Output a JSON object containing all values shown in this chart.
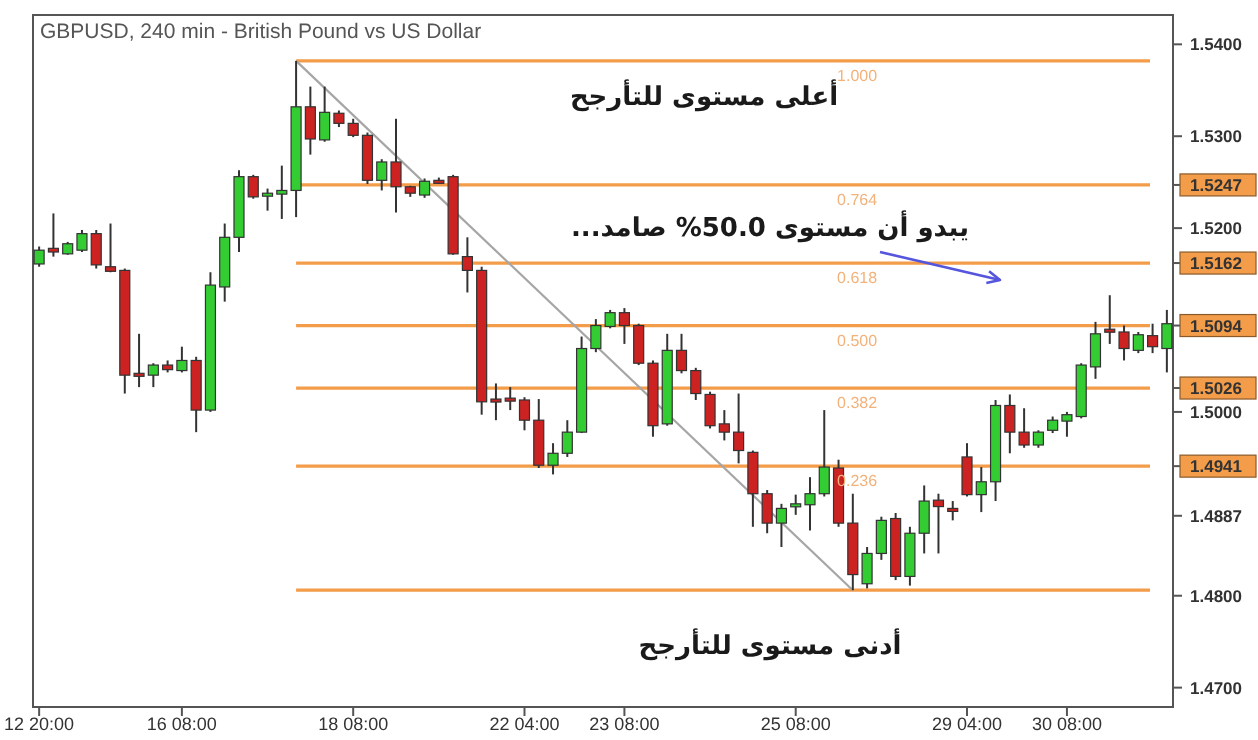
{
  "chart_data": {
    "type": "candlestick",
    "title": "GBPUSD, 240 min - British Pound vs US Dollar",
    "categories": [
      "12 20:00",
      null,
      null,
      null,
      null,
      null,
      null,
      null,
      null,
      null,
      "16 08:00",
      null,
      null,
      null,
      null,
      null,
      null,
      null,
      null,
      null,
      null,
      null,
      "18 08:00",
      null,
      null,
      null,
      null,
      null,
      null,
      null,
      null,
      null,
      null,
      null,
      "22 04:00",
      null,
      null,
      null,
      null,
      null,
      null,
      "23 08:00",
      null,
      null,
      null,
      null,
      null,
      null,
      null,
      null,
      null,
      null,
      null,
      "25 08:00",
      null,
      null,
      null,
      null,
      null,
      null,
      null,
      null,
      null,
      null,
      null,
      "29 04:00",
      null,
      null,
      null,
      null,
      null,
      null,
      "30 08:00",
      null,
      null,
      null,
      null,
      null,
      null,
      null
    ],
    "ohlc": [
      [
        1.5161,
        1.518,
        1.5158,
        1.5176
      ],
      [
        1.5178,
        1.5216,
        1.5169,
        1.5174
      ],
      [
        1.5172,
        1.5185,
        1.5171,
        1.5183
      ],
      [
        1.5176,
        1.5198,
        1.5174,
        1.5194
      ],
      [
        1.5194,
        1.5198,
        1.5156,
        1.516
      ],
      [
        1.5158,
        1.5205,
        1.5152,
        1.5153
      ],
      [
        1.5154,
        1.5156,
        1.502,
        1.504
      ],
      [
        1.5042,
        1.5085,
        1.5027,
        1.5039
      ],
      [
        1.504,
        1.5053,
        1.5027,
        1.5051
      ],
      [
        1.5051,
        1.5056,
        1.5043,
        1.5046
      ],
      [
        1.5045,
        1.5071,
        1.5043,
        1.5056
      ],
      [
        1.5056,
        1.506,
        1.4978,
        1.5002
      ],
      [
        1.5002,
        1.5152,
        1.5,
        1.5138
      ],
      [
        1.5136,
        1.5205,
        1.512,
        1.519
      ],
      [
        1.519,
        1.5263,
        1.5174,
        1.5256
      ],
      [
        1.5256,
        1.5258,
        1.5232,
        1.5234
      ],
      [
        1.5236,
        1.5243,
        1.5219,
        1.5238
      ],
      [
        1.5237,
        1.5268,
        1.521,
        1.5241
      ],
      [
        1.5241,
        1.5382,
        1.5212,
        1.5332
      ],
      [
        1.5332,
        1.5354,
        1.528,
        1.5297
      ],
      [
        1.5296,
        1.5354,
        1.5294,
        1.5326
      ],
      [
        1.5325,
        1.5328,
        1.531,
        1.5314
      ],
      [
        1.5314,
        1.5319,
        1.5299,
        1.5301
      ],
      [
        1.5301,
        1.5304,
        1.5248,
        1.5252
      ],
      [
        1.5252,
        1.5275,
        1.5241,
        1.5272
      ],
      [
        1.5272,
        1.5319,
        1.5217,
        1.5245
      ],
      [
        1.5245,
        1.5246,
        1.5234,
        1.5238
      ],
      [
        1.5236,
        1.5254,
        1.5233,
        1.5251
      ],
      [
        1.5252,
        1.5255,
        1.5248,
        1.5251
      ],
      [
        1.5256,
        1.5258,
        1.5171,
        1.5172
      ],
      [
        1.5169,
        1.519,
        1.513,
        1.5154
      ],
      [
        1.5154,
        1.5158,
        1.4997,
        1.5011
      ],
      [
        1.5014,
        1.5031,
        1.4991,
        1.5013
      ],
      [
        1.5015,
        1.5027,
        1.5002,
        1.5013
      ],
      [
        1.5013,
        1.5016,
        1.498,
        1.4991
      ],
      [
        1.4991,
        1.5014,
        1.4939,
        1.4942
      ],
      [
        1.4942,
        1.4966,
        1.4932,
        1.4955
      ],
      [
        1.4955,
        1.4991,
        1.4951,
        1.4978
      ],
      [
        1.4978,
        1.5082,
        1.4977,
        1.5069
      ],
      [
        1.5069,
        1.5101,
        1.5065,
        1.5094
      ],
      [
        1.5093,
        1.5111,
        1.5091,
        1.5108
      ],
      [
        1.5108,
        1.5113,
        1.5074,
        1.5094
      ],
      [
        1.5094,
        1.5096,
        1.5051,
        1.5053
      ],
      [
        1.5053,
        1.5056,
        1.4973,
        1.4985
      ],
      [
        1.4987,
        1.5085,
        1.4985,
        1.5067
      ],
      [
        1.5067,
        1.5085,
        1.5042,
        1.5045
      ],
      [
        1.5045,
        1.5048,
        1.5013,
        1.502
      ],
      [
        1.5019,
        1.5022,
        1.4982,
        1.4985
      ],
      [
        1.4987,
        1.5002,
        1.4969,
        1.4978
      ],
      [
        1.4978,
        1.502,
        1.4944,
        1.4958
      ],
      [
        1.4956,
        1.4958,
        1.4875,
        1.4911
      ],
      [
        1.4911,
        1.4915,
        1.4868,
        1.4879
      ],
      [
        1.4879,
        1.49,
        1.4853,
        1.4895
      ],
      [
        1.4897,
        1.491,
        1.4888,
        1.49
      ],
      [
        1.4899,
        1.4929,
        1.4871,
        1.4911
      ],
      [
        1.4911,
        1.5002,
        1.4908,
        1.494
      ],
      [
        1.4939,
        1.4948,
        1.4875,
        1.4879
      ],
      [
        1.4879,
        1.4911,
        1.4806,
        1.4823
      ],
      [
        1.4813,
        1.4853,
        1.4808,
        1.4846
      ],
      [
        1.4846,
        1.4886,
        1.4839,
        1.4882
      ],
      [
        1.4884,
        1.489,
        1.4817,
        1.4821
      ],
      [
        1.4821,
        1.4875,
        1.4811,
        1.4868
      ],
      [
        1.4868,
        1.492,
        1.4846,
        1.4903
      ],
      [
        1.4904,
        1.4911,
        1.4846,
        1.4897
      ],
      [
        1.4895,
        1.4903,
        1.4882,
        1.4894
      ],
      [
        1.4951,
        1.4966,
        1.4908,
        1.491
      ],
      [
        1.491,
        1.494,
        1.4891,
        1.4924
      ],
      [
        1.4924,
        1.5013,
        1.4903,
        1.5007
      ],
      [
        1.5007,
        1.5019,
        1.4955,
        1.4978
      ],
      [
        1.4978,
        1.5004,
        1.4961,
        1.4964
      ],
      [
        1.4964,
        1.498,
        1.4961,
        1.4978
      ],
      [
        1.498,
        1.4995,
        1.4977,
        1.4991
      ],
      [
        1.499,
        1.5,
        1.4973,
        1.4997
      ],
      [
        1.4995,
        1.5053,
        1.4993,
        1.5051
      ],
      [
        1.5049,
        1.5098,
        1.5036,
        1.5085
      ],
      [
        1.509,
        1.5127,
        1.5074,
        1.5088
      ],
      [
        1.5087,
        1.5094,
        1.5056,
        1.5069
      ],
      [
        1.5067,
        1.5087,
        1.5064,
        1.5084
      ],
      [
        1.5083,
        1.5096,
        1.5064,
        1.5071
      ],
      [
        1.5069,
        1.5111,
        1.5043,
        1.5096
      ]
    ],
    "colors": [
      "#33cc33",
      "#cc2222",
      "#33cc33",
      "#33cc33",
      "#cc2222",
      "#cc2222",
      "#cc2222",
      "#cc2222",
      "#33cc33",
      "#cc2222",
      "#33cc33",
      "#cc2222",
      "#33cc33",
      "#33cc33",
      "#33cc33",
      "#cc2222",
      "#33cc33",
      "#33cc33",
      "#33cc33",
      "#cc2222",
      "#33cc33",
      "#cc2222",
      "#cc2222",
      "#cc2222",
      "#33cc33",
      "#cc2222",
      "#cc2222",
      "#33cc33",
      "#cc2222",
      "#cc2222",
      "#cc2222",
      "#cc2222",
      "#cc2222",
      "#cc2222",
      "#cc2222",
      "#cc2222",
      "#33cc33",
      "#33cc33",
      "#33cc33",
      "#33cc33",
      "#33cc33",
      "#cc2222",
      "#cc2222",
      "#cc2222",
      "#33cc33",
      "#cc2222",
      "#cc2222",
      "#cc2222",
      "#cc2222",
      "#cc2222",
      "#cc2222",
      "#cc2222",
      "#33cc33",
      "#33cc33",
      "#33cc33",
      "#33cc33",
      "#cc2222",
      "#cc2222",
      "#33cc33",
      "#33cc33",
      "#cc2222",
      "#33cc33",
      "#33cc33",
      "#cc2222",
      "#cc2222",
      "#cc2222",
      "#33cc33",
      "#33cc33",
      "#cc2222",
      "#cc2222",
      "#33cc33",
      "#33cc33",
      "#33cc33",
      "#33cc33",
      "#33cc33",
      "#cc2222",
      "#cc2222",
      "#33cc33",
      "#cc2222",
      "#33cc33"
    ],
    "series": [
      {
        "type": "line",
        "values": [
          null,
          null,
          null,
          null,
          null,
          null,
          null,
          null,
          null,
          null,
          null,
          null,
          null,
          null,
          null,
          null,
          null,
          null,
          1.5382,
          null,
          null,
          null,
          null,
          null,
          null,
          null,
          null,
          null,
          null,
          null,
          null,
          null,
          null,
          null,
          null,
          null,
          null,
          null,
          null,
          null,
          null,
          null,
          null,
          null,
          null,
          null,
          null,
          null,
          null,
          null,
          null,
          null,
          null,
          null,
          null,
          null,
          null,
          1.4806,
          null,
          null,
          null,
          null,
          null,
          null,
          null,
          null,
          null,
          null,
          null,
          null,
          null,
          null,
          null,
          null,
          null,
          null,
          null,
          null,
          null,
          null
        ],
        "color": "#a6a6a6"
      }
    ],
    "ylim": [
      1.468,
      1.5433
    ],
    "yticks": [
      {
        "value": 1.47,
        "label": "1.4700"
      },
      {
        "value": 1.48,
        "label": "1.4800"
      },
      1.4887,
      1.4941,
      {
        "value": 1.5,
        "label": "1.5000"
      },
      1.5026,
      1.5094,
      1.5162,
      {
        "value": 1.52,
        "label": "1.5200"
      },
      1.5247,
      {
        "value": 1.53,
        "label": "1.5300"
      },
      {
        "value": 1.54,
        "label": "1.5400"
      }
    ],
    "ref_lines": [
      {
        "axis": "y",
        "value": 1.5382,
        "color": "#f39c4a"
      },
      {
        "axis": "y",
        "value": 1.5247,
        "color": "#f39c4a"
      },
      {
        "axis": "y",
        "value": 1.5162,
        "color": "#f39c4a"
      },
      {
        "axis": "y",
        "value": 1.5094,
        "color": "#f39c4a"
      },
      {
        "axis": "y",
        "value": 1.5026,
        "color": "#f39c4a"
      },
      {
        "axis": "y",
        "value": 1.4941,
        "color": "#f39c4a"
      },
      {
        "axis": "y",
        "value": 1.4806,
        "color": "#f39c4a"
      }
    ],
    "annotations": [
      {
        "text": "أعلى مستوى للتأرجح",
        "y": 1.5382
      },
      {
        "text": "أدنى مستوى للتأرجح",
        "y": 1.4806
      },
      "يبدو أن مستوى 50.0% صامد...",
      {
        "text": "1.000",
        "y": 1.5382
      },
      {
        "text": "0.764",
        "y": 1.5247
      },
      {
        "text": "0.618",
        "y": 1.5162
      },
      {
        "text": "0.500",
        "y": 1.5094
      },
      {
        "text": "0.382",
        "y": 1.5026
      },
      {
        "text": "0.236",
        "y": 1.4941
      }
    ]
  }
}
